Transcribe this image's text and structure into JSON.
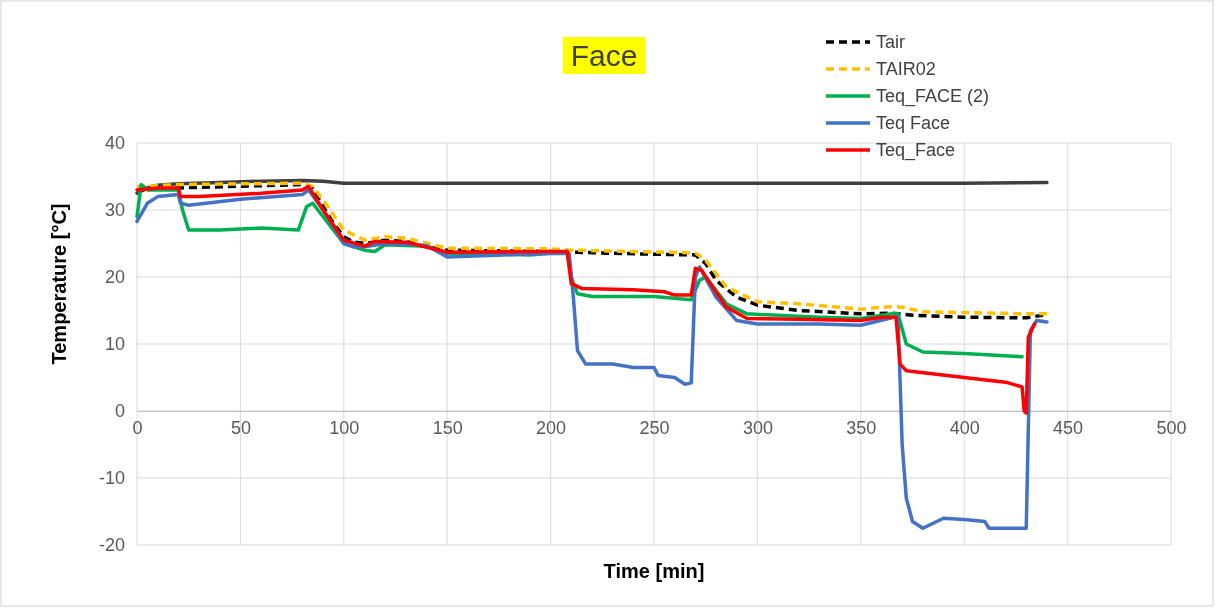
{
  "chart_data": {
    "type": "line",
    "title": "Face",
    "xlabel": "Time [min]",
    "ylabel": "Temperature [°C]",
    "xlim": [
      0,
      500
    ],
    "xticks": [
      0,
      50,
      100,
      150,
      200,
      250,
      300,
      350,
      400,
      450,
      500
    ],
    "ylim": [
      -20,
      40
    ],
    "yticks": [
      -20,
      -10,
      0,
      10,
      20,
      30,
      40
    ],
    "grid": true,
    "legend": "top right",
    "marker": "none",
    "series": [
      {
        "color": "#404040",
        "line_style": "solid",
        "x": [
          0,
          5,
          10,
          20,
          40,
          60,
          80,
          90,
          100,
          120,
          200,
          300,
          400,
          440
        ],
        "values": [
          32.5,
          33.3,
          33.7,
          33.9,
          34.1,
          34.3,
          34.4,
          34.3,
          34.0,
          34.0,
          34.0,
          34.0,
          34.0,
          34.1
        ]
      },
      {
        "name": "Tair",
        "color": "#000000",
        "line_style": "dashed",
        "x": [
          0,
          20,
          80,
          85,
          90,
          95,
          100,
          105,
          110,
          120,
          130,
          140,
          150,
          200,
          210,
          250,
          270,
          275,
          280,
          290,
          300,
          320,
          350,
          365,
          375,
          400,
          430,
          440
        ],
        "values": [
          33,
          33.3,
          33.8,
          33.2,
          30.5,
          28,
          26,
          25.2,
          25,
          25.5,
          25.3,
          24.5,
          24,
          23.8,
          23.7,
          23.4,
          23.3,
          22,
          19.5,
          17,
          15.8,
          15,
          14.5,
          14.6,
          14.3,
          14,
          13.9,
          14.4
        ]
      },
      {
        "name": "TAIR02",
        "color": "#ffc000",
        "line_style": "dashed",
        "x": [
          0,
          20,
          80,
          85,
          90,
          100,
          110,
          120,
          130,
          150,
          200,
          210,
          270,
          275,
          285,
          300,
          320,
          350,
          365,
          370,
          380,
          430,
          440
        ],
        "values": [
          33.5,
          33.8,
          34,
          33.5,
          31.5,
          27,
          25.5,
          26,
          25.8,
          24.3,
          24.2,
          24,
          23.6,
          22.5,
          18.5,
          16.3,
          16,
          15.2,
          15.6,
          15.5,
          14.8,
          14.5,
          14.5
        ]
      },
      {
        "name": "Teq_FACE (2)",
        "color": "#00b050",
        "line_style": "solid",
        "x": [
          0,
          2,
          5,
          20,
          22,
          25,
          40,
          60,
          78,
          82,
          85,
          90,
          100,
          110,
          115,
          120,
          140,
          150,
          170,
          190,
          208,
          210,
          213,
          220,
          250,
          268,
          272,
          275,
          285,
          295,
          330,
          350,
          365,
          368,
          372,
          380,
          400,
          428
        ],
        "values": [
          29,
          33.8,
          33,
          33,
          30,
          27,
          27,
          27.3,
          27,
          30.5,
          31,
          29,
          25,
          24,
          23.8,
          24.8,
          24.6,
          23.5,
          23.6,
          23.3,
          23.8,
          20,
          17.5,
          17.1,
          17.1,
          16.6,
          19.5,
          20,
          16,
          14.5,
          14,
          13.8,
          14.5,
          14.5,
          10,
          8.8,
          8.6,
          8.1
        ]
      },
      {
        "name": "Teq Face",
        "color": "#4472c4",
        "line_style": "solid",
        "x": [
          0,
          5,
          10,
          20,
          21,
          25,
          50,
          80,
          83,
          90,
          100,
          105,
          110,
          120,
          140,
          150,
          200,
          209,
          211,
          213,
          217,
          230,
          240,
          250,
          252,
          260,
          265,
          268,
          270,
          272,
          280,
          290,
          300,
          330,
          350,
          366,
          368,
          370,
          372,
          375,
          380,
          390,
          400,
          410,
          412,
          430,
          432,
          435,
          440
        ],
        "values": [
          28.3,
          31,
          32,
          32.3,
          31,
          30.7,
          31.6,
          32.3,
          33,
          30,
          25,
          24.5,
          24.5,
          25,
          24.7,
          23,
          23.5,
          23.5,
          17,
          9,
          7,
          7,
          6.5,
          6.5,
          5.3,
          5,
          4,
          4.2,
          20,
          21.5,
          17,
          13.5,
          13,
          13,
          12.8,
          14,
          14,
          -5,
          -13,
          -16.5,
          -17.5,
          -16,
          -16.2,
          -16.5,
          -17.5,
          -17.5,
          12,
          13.5,
          13.3
        ]
      },
      {
        "name": "Teq_Face",
        "color": "#ff0000",
        "line_style": "solid",
        "x": [
          0,
          10,
          20,
          21,
          30,
          60,
          80,
          83,
          90,
          100,
          110,
          115,
          130,
          150,
          200,
          208,
          210,
          215,
          240,
          255,
          260,
          268,
          270,
          273,
          285,
          295,
          320,
          350,
          360,
          367,
          369,
          372,
          400,
          420,
          428,
          429,
          430,
          431,
          434
        ],
        "values": [
          33,
          33.3,
          33.3,
          32,
          32,
          32.5,
          33,
          33.5,
          30,
          25.5,
          24.6,
          25.3,
          25.2,
          23.7,
          23.8,
          23.8,
          19,
          18.3,
          18.1,
          17.8,
          17.3,
          17.3,
          21.3,
          21,
          15.5,
          13.8,
          13.7,
          13.5,
          14,
          14,
          7,
          6,
          5,
          4.3,
          3.6,
          0,
          -0.3,
          11,
          13
        ]
      }
    ]
  }
}
